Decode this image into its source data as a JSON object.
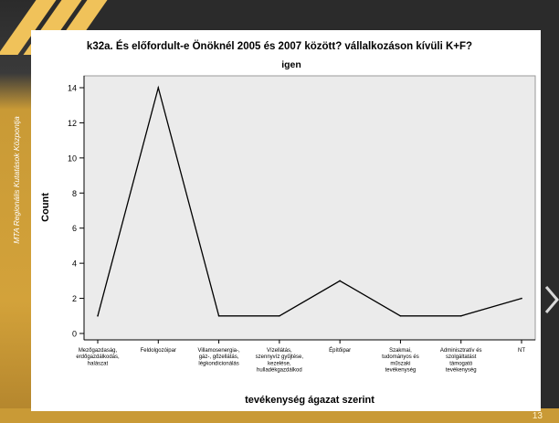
{
  "slide": {
    "side_caption": "MTA Regionális Kutatások Központja",
    "page_number": "13"
  },
  "chart_data": {
    "type": "line",
    "title": "k32a. És előfordult-e Önöknél 2005 és 2007 között? vállalkozáson kívüli K+F?",
    "subtitle": "igen",
    "xlabel": "tevékenység ágazat szerint",
    "ylabel": "Count",
    "categories": [
      [
        "Mezőgazdaság,",
        "erdőgazdálkodás,",
        "halászat"
      ],
      [
        "Feldolgozóipar"
      ],
      [
        "Villamosenergia-,",
        "gáz-, gőzellátás,",
        "légkondicionálás"
      ],
      [
        "Vízellátás,",
        "szennyvíz gyűjtése,",
        "kezelése,",
        "hulladékgazdálkod"
      ],
      [
        "Építőipar"
      ],
      [
        "Szakmai,",
        "tudományos és",
        "műszaki",
        "tevékenység"
      ],
      [
        "Adminisztratív és",
        "szolgáltatást",
        "támogató",
        "tevékenység"
      ],
      [
        "NT"
      ]
    ],
    "values": [
      1,
      14,
      1,
      1,
      3,
      1,
      1,
      2
    ],
    "ylim": [
      0,
      14
    ],
    "yticks": [
      0,
      2,
      4,
      6,
      8,
      10,
      12,
      14
    ],
    "grid": false,
    "colors": {
      "plot_bg": "#ebebeb",
      "line": "#000000"
    }
  }
}
